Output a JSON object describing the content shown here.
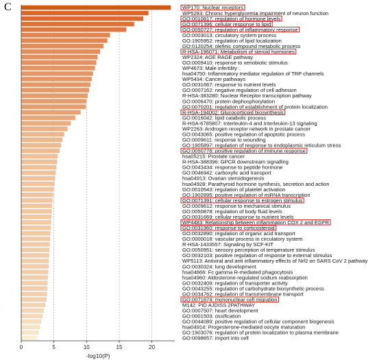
{
  "panel_label": "C",
  "chart_data": {
    "type": "bar",
    "orientation": "horizontal",
    "xlabel": "-log10(P)",
    "xlim": [
      0,
      23.5
    ],
    "xticks": [
      0,
      5,
      10,
      15,
      20
    ],
    "gridlines": "vertical dashed",
    "colors": {
      "high": "#d2571b",
      "low": "#fbf0d4",
      "highlight_box": "#e31a1c"
    },
    "terms": [
      {
        "label": "WP170: Nuclear receptors",
        "value": 22.9,
        "highlight": true
      },
      {
        "label": "WP5283: Chronic hyperglycemia impairment of neuron function",
        "value": 19.5,
        "highlight": false
      },
      {
        "label": "GO:0010817: regulation of hormone levels",
        "value": 18.7,
        "highlight": true
      },
      {
        "label": "GO:0071396: cellular response to lipid",
        "value": 17.3,
        "highlight": true
      },
      {
        "label": "GO:0050727: regulation of inflammatory response",
        "value": 16.1,
        "highlight": true
      },
      {
        "label": "GO:0003013: circulatory system process",
        "value": 13.6,
        "highlight": false
      },
      {
        "label": "GO:1905952: regulation of lipid localization",
        "value": 13.2,
        "highlight": false
      },
      {
        "label": "GO:0120254: olefinic compound metabolic process",
        "value": 12.6,
        "highlight": false
      },
      {
        "label": "R-HSA-196071: Metabolism of steroid hormones",
        "value": 12.1,
        "highlight": true
      },
      {
        "label": "WP2324: AGE RAGE pathway",
        "value": 11.7,
        "highlight": false
      },
      {
        "label": "GO:0009410: response to xenobiotic stimulus",
        "value": 11.5,
        "highlight": false
      },
      {
        "label": "WP4673: Male infertility",
        "value": 11.3,
        "highlight": false
      },
      {
        "label": "hsa04750: Inflammatory mediator regulation of TRP channels",
        "value": 11.0,
        "highlight": false
      },
      {
        "label": "WP5434: Cancer pathways",
        "value": 10.8,
        "highlight": false
      },
      {
        "label": "GO:0031667: response to nutrient levels",
        "value": 10.6,
        "highlight": false
      },
      {
        "label": "GO:0007162: negative regulation of cell adhesion",
        "value": 10.4,
        "highlight": false
      },
      {
        "label": "R-HSA-383280: Nuclear Receptor transcription pathway",
        "value": 10.2,
        "highlight": false
      },
      {
        "label": "GO:0006470: protein dephosphorylation",
        "value": 10.0,
        "highlight": false
      },
      {
        "label": "GO:0070201: regulation of establishment of protein localization",
        "value": 9.9,
        "highlight": false
      },
      {
        "label": "R-HSA-194002: Glucocorticoid biosynthesis",
        "value": 9.1,
        "highlight": true
      },
      {
        "label": "GO:0016042: lipid catabolic process",
        "value": 8.3,
        "highlight": false
      },
      {
        "label": "R-HSA-6785807: Interleukin-4 and Interleukin-13 signaling",
        "value": 7.6,
        "highlight": false
      },
      {
        "label": "WP2263: Androgen receptor network in prostate cancer",
        "value": 7.1,
        "highlight": false
      },
      {
        "label": "GO:0043065: positive regulation of apoptotic process",
        "value": 6.6,
        "highlight": false
      },
      {
        "label": "GO:0009611: response to wounding",
        "value": 6.3,
        "highlight": false
      },
      {
        "label": "GO:1905897: regulation of response to endoplasmic reticulum stress",
        "value": 6.1,
        "highlight": false
      },
      {
        "label": "GO:0050778: positive regulation of immune response",
        "value": 5.9,
        "highlight": true
      },
      {
        "label": "hsa05215: Prostate cancer",
        "value": 5.6,
        "highlight": false
      },
      {
        "label": "R-HSA-388396: GPCR downstream signalling",
        "value": 5.5,
        "highlight": false
      },
      {
        "label": "GO:0043434: response to peptide hormone",
        "value": 5.4,
        "highlight": false
      },
      {
        "label": "GO:0046942: carboxylic acid transport",
        "value": 5.3,
        "highlight": false
      },
      {
        "label": "hsa04913: Ovarian steroidogenesis",
        "value": 5.2,
        "highlight": false
      },
      {
        "label": "hsa04928: Parathyroid hormone synthesis, secretion and action",
        "value": 5.1,
        "highlight": false
      },
      {
        "label": "GO:0010543: regulation of platelet activation",
        "value": 5.0,
        "highlight": false
      },
      {
        "label": "GO:1902895: positive regulation of miRNA transcription",
        "value": 4.9,
        "highlight": false
      },
      {
        "label": "GO:0071391: cellular response to estrogen stimulus",
        "value": 4.8,
        "highlight": true
      },
      {
        "label": "GO:0009612: response to mechanical stimulus",
        "value": 4.75,
        "highlight": false
      },
      {
        "label": "GO:0050878: regulation of body fluid levels",
        "value": 4.7,
        "highlight": false
      },
      {
        "label": "GO:0031669: cellular response to nutrient levels",
        "value": 4.65,
        "highlight": false
      },
      {
        "label": "WP4483: Relationship between inflammation COX 2 and EGFR",
        "value": 4.6,
        "highlight": true
      },
      {
        "label": "GO:0031960: response to corticosteroid",
        "value": 4.55,
        "highlight": true
      },
      {
        "label": "GO:0032890: regulation of organic acid transport",
        "value": 4.5,
        "highlight": false
      },
      {
        "label": "GO:0000018: vascular process in circulatory system",
        "value": 4.45,
        "highlight": false
      },
      {
        "label": "R-HSA-1433557: Signaling by SCF-KIT",
        "value": 4.4,
        "highlight": false
      },
      {
        "label": "GO:0050951: sensory perception of temperature stimulus",
        "value": 4.35,
        "highlight": false
      },
      {
        "label": "GO:0032103: positive regulation of response to external stimulus",
        "value": 4.3,
        "highlight": false
      },
      {
        "label": "WP5113: Antiviral and anti inflammatory effects of Nrf2 on SARS CoV 2 pathway",
        "value": 4.25,
        "highlight": false
      },
      {
        "label": "GO:0030324: lung development",
        "value": 4.2,
        "highlight": false
      },
      {
        "label": "hsa04666: Fc gamma R-mediated phagocytosis",
        "value": 4.15,
        "highlight": false
      },
      {
        "label": "hsa04960: Aldosterone-regulated sodium reabsorption",
        "value": 4.1,
        "highlight": false
      },
      {
        "label": "GO:0032409: regulation of transporter activity",
        "value": 4.05,
        "highlight": false
      },
      {
        "label": "GO:0043255: regulation of carbohydrate biosynthetic process",
        "value": 4.0,
        "highlight": false
      },
      {
        "label": "GO:0034762: regulation of transmembrane transport",
        "value": 3.95,
        "highlight": false
      },
      {
        "label": "GO:0071674: mononuclear cell migration",
        "value": 3.9,
        "highlight": true
      },
      {
        "label": "M142: PID AJDISS 2PATHWAY",
        "value": 3.7,
        "highlight": false
      },
      {
        "label": "GO:0007507: heart development",
        "value": 3.5,
        "highlight": false
      },
      {
        "label": "GO:0001503: ossification",
        "value": 3.3,
        "highlight": false
      },
      {
        "label": "GO:0044089: positive regulation of cellular component biogenesis",
        "value": 3.1,
        "highlight": false
      },
      {
        "label": "hsa04914: Progesterone-mediated oocyte maturation",
        "value": 2.9,
        "highlight": false
      },
      {
        "label": "GO:1903076: regulation of protein localization to plasma membrane",
        "value": 2.7,
        "highlight": false
      },
      {
        "label": "GO:0098657: import into cell",
        "value": 2.5,
        "highlight": false
      }
    ]
  }
}
